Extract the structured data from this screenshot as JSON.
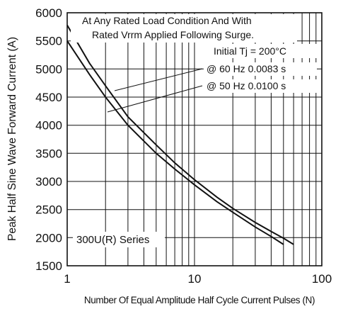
{
  "chart_data": {
    "type": "line",
    "x_scale": "log",
    "xlim": [
      1,
      100
    ],
    "ylim": [
      1500,
      6000
    ],
    "xlabel": "Number Of Equal Amplitude Half Cycle Current Pulses (N)",
    "ylabel": "Peak Half Sine Wave Forward Current (A)",
    "x_ticks": [
      1,
      10,
      100
    ],
    "y_ticks": [
      1500,
      2000,
      2500,
      3000,
      3500,
      4000,
      4500,
      5000,
      5500,
      6000
    ],
    "grid": true,
    "series": [
      {
        "name": "@ 60 Hz 0.0083 s",
        "x": [
          1,
          1.5,
          2,
          3,
          5,
          7,
          10,
          15,
          20,
          30,
          40,
          50,
          60
        ],
        "y": [
          5780,
          5100,
          4700,
          4150,
          3650,
          3330,
          3030,
          2720,
          2520,
          2270,
          2110,
          1990,
          1880
        ]
      },
      {
        "name": "@ 50 Hz 0.0100 s",
        "x": [
          1,
          1.5,
          2,
          3,
          5,
          7,
          10,
          15,
          20,
          30,
          40,
          50
        ],
        "y": [
          5500,
          4900,
          4500,
          4000,
          3500,
          3220,
          2940,
          2640,
          2450,
          2190,
          2020,
          1880
        ]
      }
    ],
    "annotations": {
      "line1": "At Any Rated Load Condition And With",
      "line2": "Rated Vrrm Applied Following Surge.",
      "line3": "Initial Tj = 200°C",
      "label_60": "@ 60 Hz 0.0083 s",
      "label_50": "@ 50 Hz 0.0100 s",
      "series_name": "300U(R) Series"
    }
  }
}
